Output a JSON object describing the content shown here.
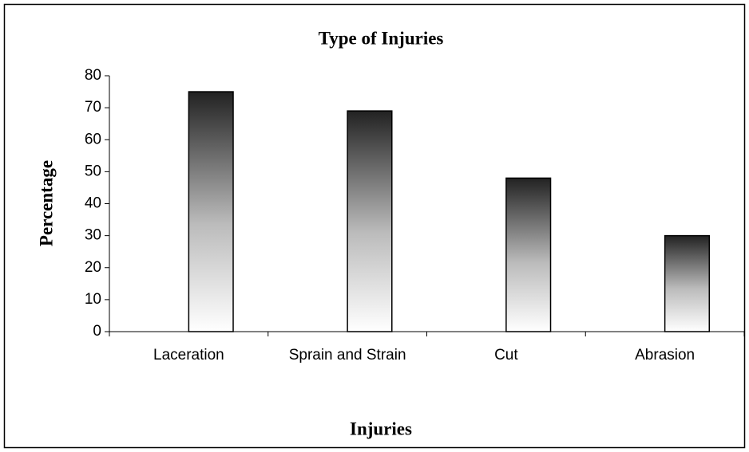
{
  "chart_data": {
    "type": "bar",
    "title": "Type of Injuries",
    "xlabel": "Injuries",
    "ylabel": "Percentage",
    "categories": [
      "Laceration",
      "Sprain and Strain",
      "Cut",
      "Abrasion"
    ],
    "values": [
      75,
      69,
      48,
      30
    ],
    "color": "#222222",
    "ylim": [
      0,
      80
    ],
    "yticks": [
      0,
      10,
      20,
      30,
      40,
      50,
      60,
      70,
      80
    ],
    "grid": false
  }
}
